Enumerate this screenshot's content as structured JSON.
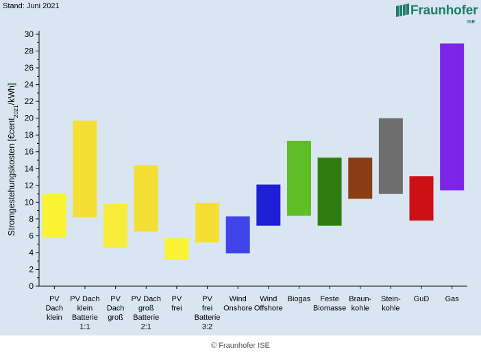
{
  "stand": "Stand: Juni 2021",
  "logo": {
    "name": "Fraunhofer",
    "sub": "ISE",
    "color": "#1f7b6a"
  },
  "caption": "© Fraunhofer ISE",
  "chart_data": {
    "type": "bar",
    "subtype": "floating-range",
    "ylabel_parts": [
      "Stromgestehungskosten [€cent",
      "2021",
      "/kWh]"
    ],
    "ylim": [
      0,
      30
    ],
    "yticks": [
      0,
      2,
      4,
      6,
      8,
      10,
      12,
      14,
      16,
      18,
      20,
      22,
      24,
      26,
      28,
      30
    ],
    "grid": false,
    "categories": [
      {
        "label": [
          "PV",
          "Dach",
          "klein"
        ],
        "low": 5.8,
        "high": 11.0,
        "color": "#f9f334"
      },
      {
        "label": [
          "PV Dach",
          "klein",
          "Batterie",
          "1:1"
        ],
        "low": 8.2,
        "high": 19.7,
        "color": "#f5df34"
      },
      {
        "label": [
          "PV",
          "Dach",
          "groß"
        ],
        "low": 4.6,
        "high": 9.8,
        "color": "#f7ec3a"
      },
      {
        "label": [
          "PV Dach",
          "groß",
          "Batterie",
          "2:1"
        ],
        "low": 6.5,
        "high": 14.4,
        "color": "#f5df34"
      },
      {
        "label": [
          "PV",
          "frei"
        ],
        "low": 3.1,
        "high": 5.7,
        "color": "#f9f334"
      },
      {
        "label": [
          "PV",
          "frei",
          "Batterie",
          "3:2"
        ],
        "low": 5.2,
        "high": 9.9,
        "color": "#f5df34"
      },
      {
        "label": [
          "Wind",
          "Onshore"
        ],
        "low": 3.9,
        "high": 8.3,
        "color": "#4044e8"
      },
      {
        "label": [
          "Wind",
          "Offshore"
        ],
        "low": 7.2,
        "high": 12.1,
        "color": "#1d1ed6"
      },
      {
        "label": [
          "Biogas"
        ],
        "low": 8.4,
        "high": 17.3,
        "color": "#5fbd26"
      },
      {
        "label": [
          "Feste",
          "Biomasse"
        ],
        "low": 7.2,
        "high": 15.3,
        "color": "#2f7d12"
      },
      {
        "label": [
          "Braun-",
          "kohle"
        ],
        "low": 10.4,
        "high": 15.3,
        "color": "#8a3c12"
      },
      {
        "label": [
          "Stein-",
          "kohle"
        ],
        "low": 11.0,
        "high": 20.0,
        "color": "#6e6e6e"
      },
      {
        "label": [
          "GuD"
        ],
        "low": 7.8,
        "high": 13.1,
        "color": "#cc1016"
      },
      {
        "label": [
          "Gas"
        ],
        "low": 11.4,
        "high": 28.9,
        "color": "#7d25e6"
      }
    ]
  }
}
